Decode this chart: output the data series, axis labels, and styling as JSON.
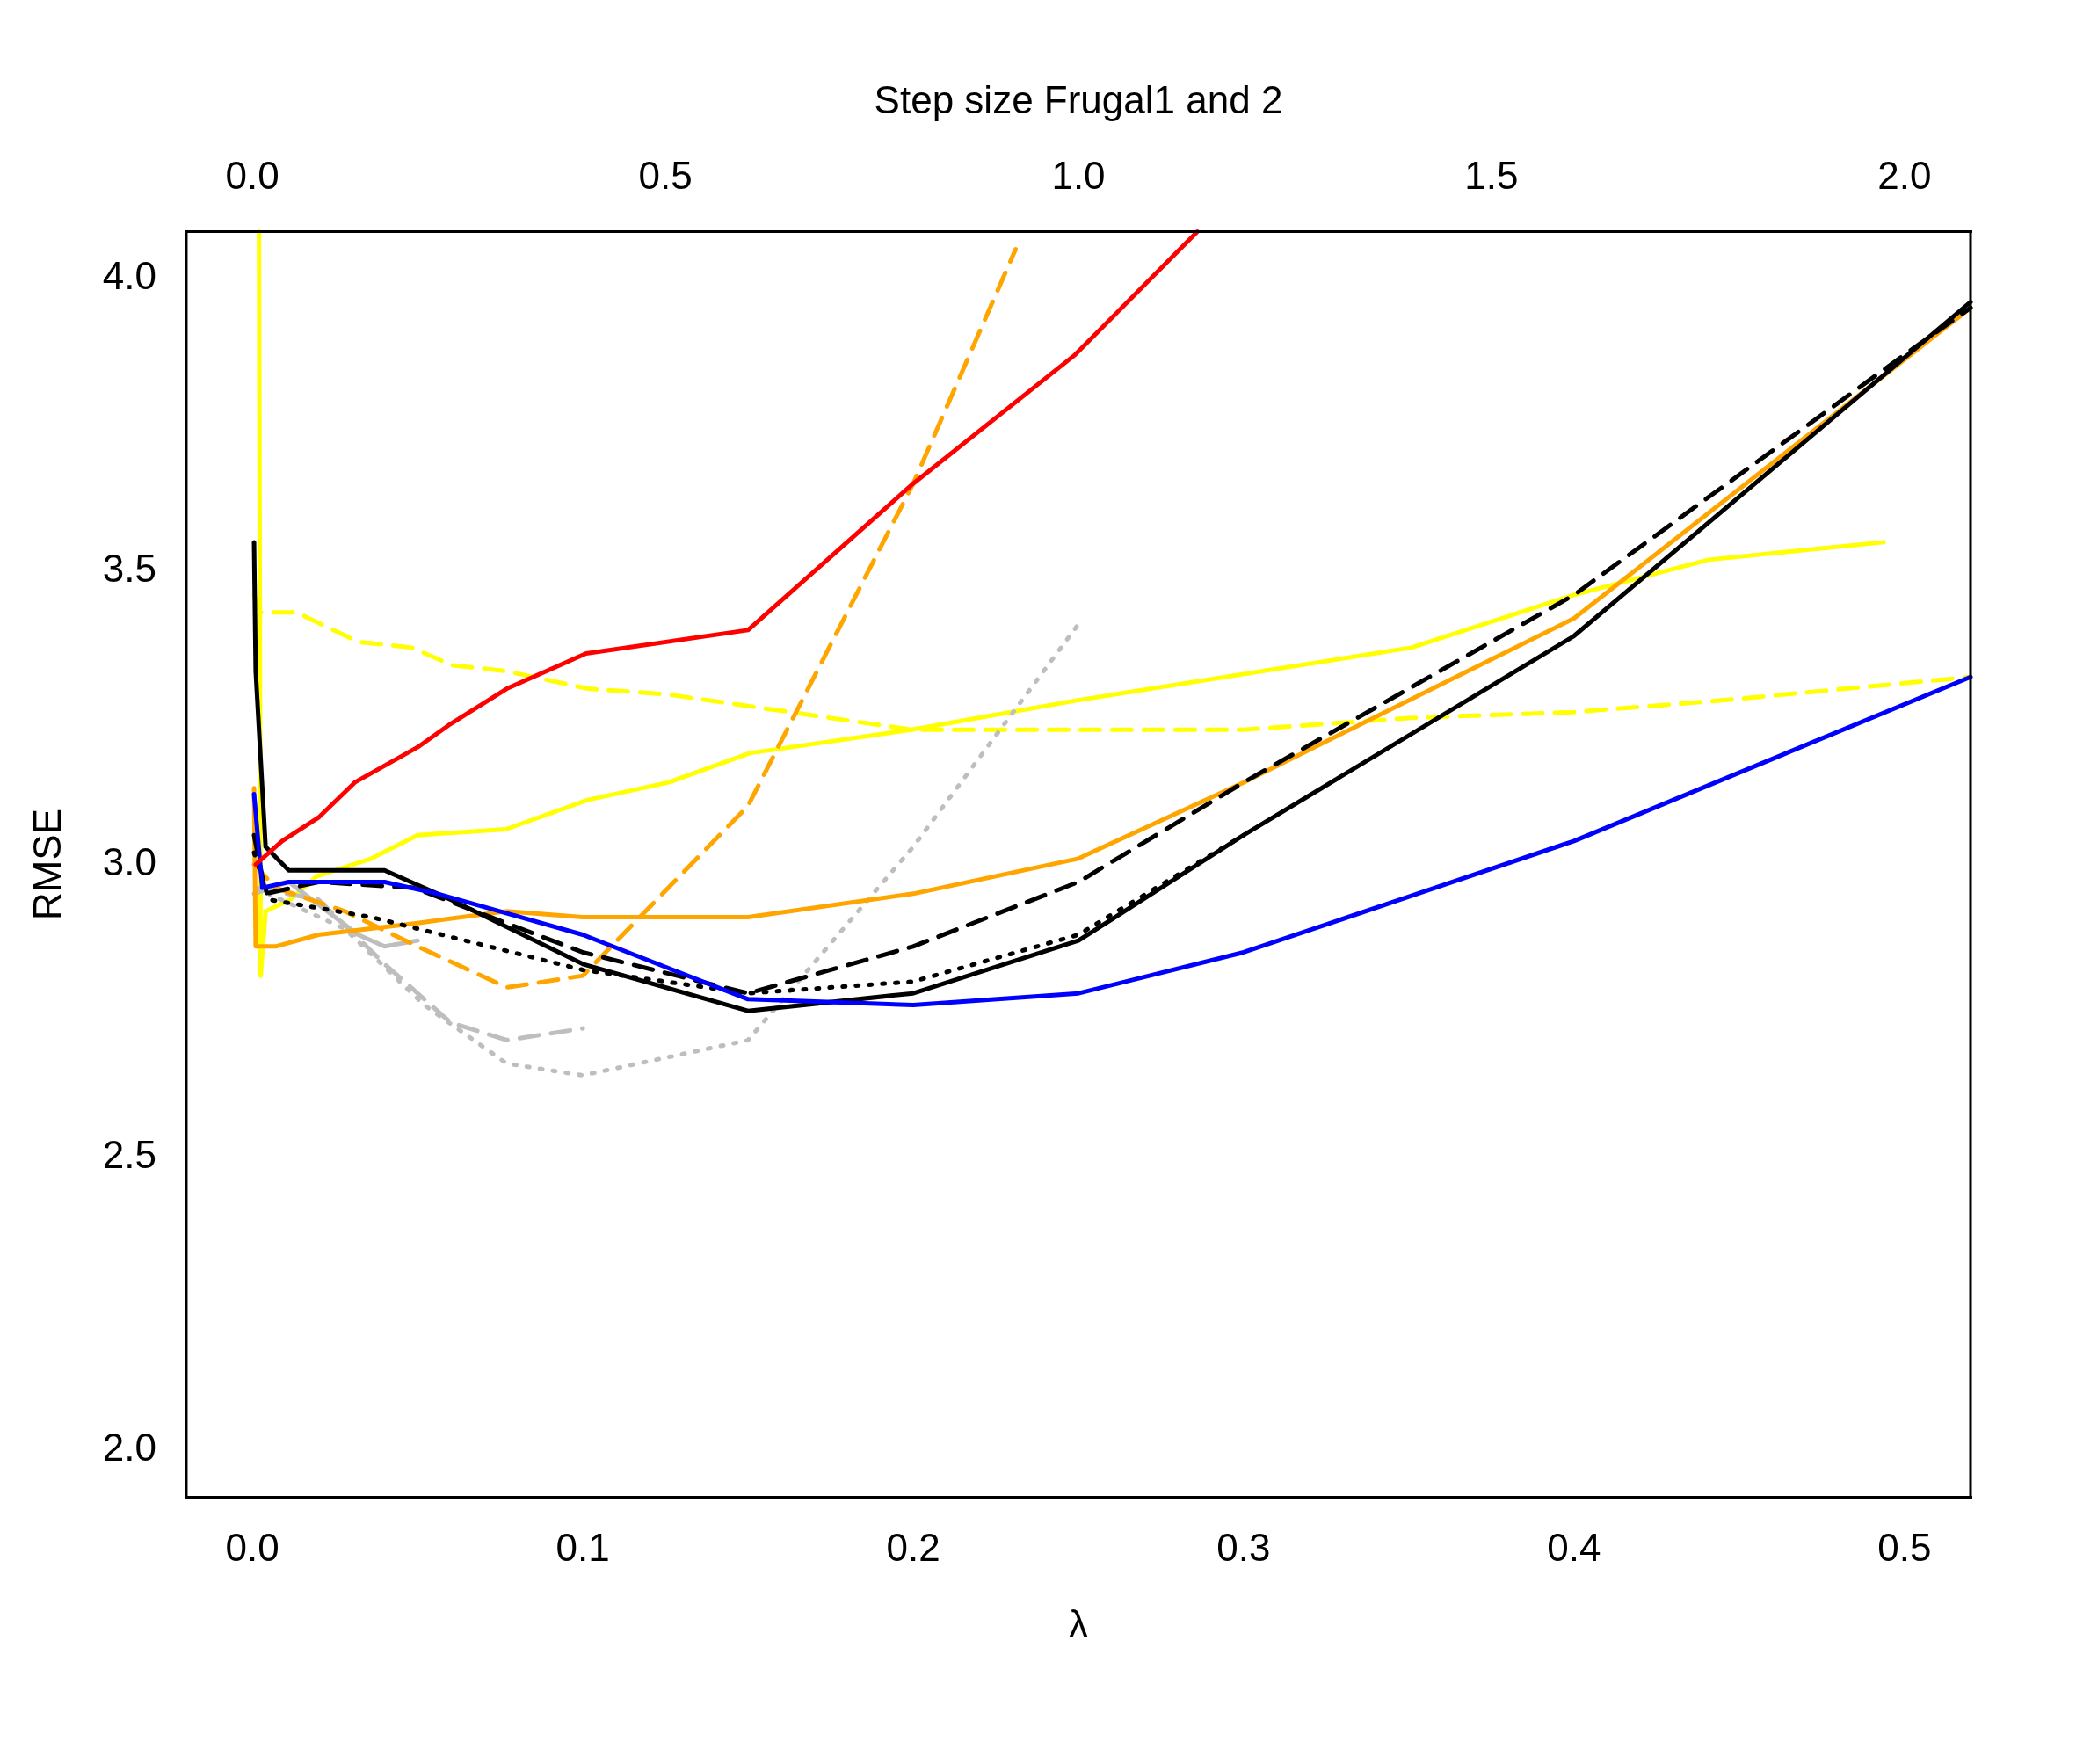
{
  "chart_data": {
    "type": "line",
    "xlabel": "λ",
    "ylabel": "RMSE",
    "x2label": "Step size Frugal1 and 2",
    "xlim": [
      -0.02,
      0.52
    ],
    "xticks": [
      {
        "value": 0,
        "label": "0.0"
      },
      0.1,
      0.2,
      0.3,
      0.4,
      0.5
    ],
    "x2lim": [
      -0.08,
      2.08
    ],
    "x2ticks": [
      {
        "value": 0,
        "label": "0.0"
      },
      0.5,
      {
        "value": 1,
        "label": "1.0"
      },
      1.5,
      {
        "value": 2,
        "label": "2.0"
      }
    ],
    "ylim": [
      1.92,
      4.08
    ],
    "yticks": [
      {
        "value": 2,
        "label": "2.0"
      },
      2.5,
      {
        "value": 3,
        "label": "3.0"
      },
      3.5,
      {
        "value": 4,
        "label": "4.0"
      }
    ],
    "grid": false,
    "legend": false,
    "marker": "none",
    "series": [
      {
        "color": "#ff0000",
        "line_style": "solid",
        "x": [
          0.001,
          0.009,
          0.02,
          0.031,
          0.05,
          0.06,
          0.077,
          0.101,
          0.15,
          0.2,
          0.249,
          0.286
        ],
        "values": [
          3.0,
          3.04,
          3.08,
          3.14,
          3.2,
          3.24,
          3.3,
          3.36,
          3.4,
          3.65,
          3.87,
          4.08
        ]
      },
      {
        "color": "#0000ff",
        "line_style": "solid",
        "x": [
          0.0005,
          0.003,
          0.011,
          0.04,
          0.056,
          0.1,
          0.15,
          0.2,
          0.25,
          0.3,
          0.4,
          0.52
        ],
        "values": [
          3.12,
          2.96,
          2.97,
          2.97,
          2.95,
          2.88,
          2.77,
          2.76,
          2.78,
          2.85,
          3.04,
          3.32
        ]
      },
      {
        "color": "#000000",
        "line_style": "solid",
        "x": [
          0.0005,
          0.001,
          0.004,
          0.011,
          0.02,
          0.04,
          0.06,
          0.1,
          0.15,
          0.2,
          0.25,
          0.3,
          0.4,
          0.52
        ],
        "values": [
          3.55,
          3.33,
          3.03,
          2.99,
          2.99,
          2.99,
          2.94,
          2.83,
          2.75,
          2.78,
          2.87,
          3.05,
          3.39,
          3.96
        ]
      },
      {
        "color": "#000000",
        "line_style": "dashed",
        "x": [
          0.0005,
          0.004,
          0.02,
          0.049,
          0.1,
          0.15,
          0.2,
          0.25,
          0.3,
          0.4,
          0.5,
          0.52
        ],
        "values": [
          3.05,
          2.95,
          2.97,
          2.96,
          2.85,
          2.78,
          2.86,
          2.97,
          3.14,
          3.46,
          3.87,
          3.95
        ]
      },
      {
        "color": "#000000",
        "line_style": "dotted",
        "x": [
          0.0005,
          0.005,
          0.036,
          0.1,
          0.15,
          0.2,
          0.25,
          0.3
        ],
        "values": [
          3.02,
          2.94,
          2.91,
          2.82,
          2.78,
          2.8,
          2.88,
          3.05
        ]
      },
      {
        "color": "#ffa500",
        "line_style": "solid",
        "x": [
          0.0005,
          0.001,
          0.007,
          0.02,
          0.05,
          0.077,
          0.1,
          0.15,
          0.2,
          0.25,
          0.3,
          0.4,
          0.52
        ],
        "values": [
          3.13,
          2.86,
          2.86,
          2.88,
          2.9,
          2.92,
          2.91,
          2.91,
          2.95,
          3.01,
          3.14,
          3.42,
          3.95
        ]
      },
      {
        "color": "#ffa500",
        "line_style": "dashed",
        "x": [
          0.0005,
          0.007,
          0.028,
          0.05,
          0.077,
          0.1,
          0.15,
          0.2,
          0.231
        ],
        "values": [
          3.0,
          2.96,
          2.92,
          2.86,
          2.79,
          2.81,
          3.1,
          3.65,
          4.05
        ]
      },
      {
        "color": "#bebebe",
        "line_style": "solid",
        "x": [
          0.0005,
          0.011,
          0.032,
          0.04,
          0.05
        ],
        "values": [
          2.95,
          2.97,
          2.88,
          2.86,
          2.87
        ]
      },
      {
        "color": "#bebebe",
        "line_style": "dashed",
        "x": [
          0.001,
          0.02,
          0.04,
          0.06,
          0.077,
          0.1
        ],
        "values": [
          2.96,
          2.94,
          2.83,
          2.73,
          2.7,
          2.72
        ]
      },
      {
        "color": "#bebebe",
        "line_style": "dotted",
        "x": [
          0.001,
          0.028,
          0.052,
          0.077,
          0.1,
          0.15,
          0.2,
          0.25
        ],
        "values": [
          2.96,
          2.89,
          2.76,
          2.66,
          2.64,
          2.7,
          3.03,
          3.41
        ]
      },
      {
        "color": "#ffff00",
        "line_style": "solid",
        "axis": "x2",
        "x": [
          0.008,
          0.01,
          0.016,
          0.046,
          0.078,
          0.144,
          0.2,
          0.307,
          0.406,
          0.504,
          0.602,
          0.798,
          0.998,
          1.403,
          1.6,
          1.763,
          1.975
        ],
        "values": [
          4.08,
          2.81,
          2.92,
          2.94,
          2.98,
          3.01,
          3.05,
          3.06,
          3.11,
          3.14,
          3.19,
          3.23,
          3.28,
          3.37,
          3.46,
          3.52,
          3.55
        ]
      },
      {
        "color": "#ffff00",
        "line_style": "dashed",
        "axis": "x2",
        "x": [
          0.002,
          0.01,
          0.054,
          0.128,
          0.193,
          0.242,
          0.307,
          0.406,
          0.504,
          0.602,
          0.798,
          0.998,
          1.199,
          1.403,
          1.6,
          1.779,
          2.08
        ],
        "values": [
          3.46,
          3.43,
          3.43,
          3.38,
          3.37,
          3.34,
          3.33,
          3.3,
          3.29,
          3.27,
          3.23,
          3.23,
          3.23,
          3.25,
          3.26,
          3.28,
          3.32
        ]
      }
    ]
  }
}
